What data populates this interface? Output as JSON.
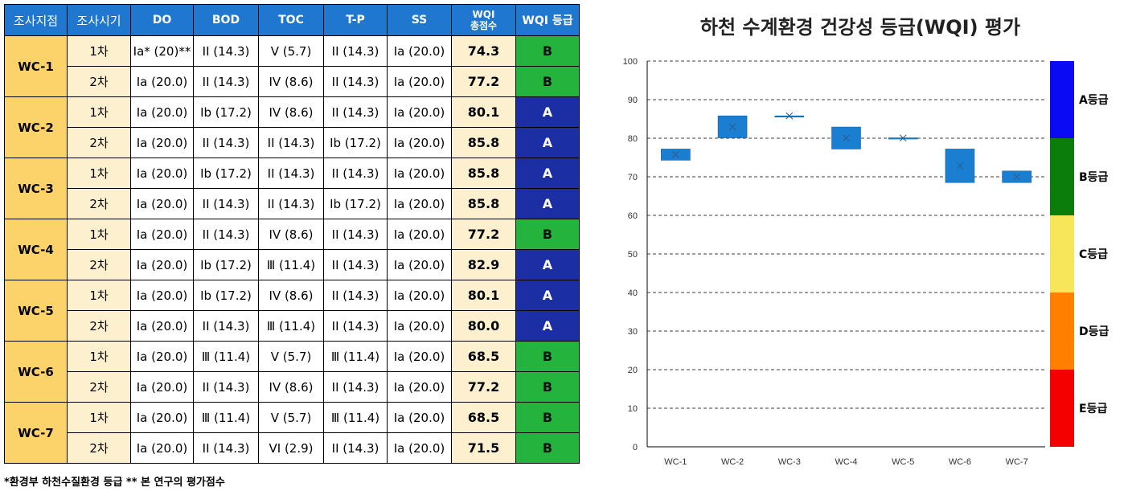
{
  "table": {
    "headers": [
      "조사지점",
      "조사시기",
      "DO",
      "BOD",
      "TOC",
      "T-P",
      "SS",
      "WQI\n총점수",
      "WQI 등급"
    ],
    "rows": [
      {
        "site": "WC-1",
        "time": "1차",
        "do": "Ia* (20)**",
        "bod": "II (14.3)",
        "toc": "V (5.7)",
        "tp": "II (14.3)",
        "ss": "Ia (20.0)",
        "score": "74.3",
        "grade": "B"
      },
      {
        "site": "WC-1",
        "time": "2차",
        "do": "Ia (20.0)",
        "bod": "II (14.3)",
        "toc": "IV (8.6)",
        "tp": "II (14.3)",
        "ss": "Ia (20.0)",
        "score": "77.2",
        "grade": "B"
      },
      {
        "site": "WC-2",
        "time": "1차",
        "do": "Ia (20.0)",
        "bod": "Ib (17.2)",
        "toc": "IV (8.6)",
        "tp": "II (14.3)",
        "ss": "Ia (20.0)",
        "score": "80.1",
        "grade": "A"
      },
      {
        "site": "WC-2",
        "time": "2차",
        "do": "Ia (20.0)",
        "bod": "II (14.3)",
        "toc": "II (14.3)",
        "tp": "Ib (17.2)",
        "ss": "Ia (20.0)",
        "score": "85.8",
        "grade": "A"
      },
      {
        "site": "WC-3",
        "time": "1차",
        "do": "Ia (20.0)",
        "bod": "Ib (17.2)",
        "toc": "II (14.3)",
        "tp": "II (14.3)",
        "ss": "Ia (20.0)",
        "score": "85.8",
        "grade": "A"
      },
      {
        "site": "WC-3",
        "time": "2차",
        "do": "Ia (20.0)",
        "bod": "II (14.3)",
        "toc": "II (14.3)",
        "tp": "Ib (17.2)",
        "ss": "Ia (20.0)",
        "score": "85.8",
        "grade": "A"
      },
      {
        "site": "WC-4",
        "time": "1차",
        "do": "Ia (20.0)",
        "bod": "II (14.3)",
        "toc": "IV (8.6)",
        "tp": "II (14.3)",
        "ss": "Ia (20.0)",
        "score": "77.2",
        "grade": "B"
      },
      {
        "site": "WC-4",
        "time": "2차",
        "do": "Ia (20.0)",
        "bod": "Ib (17.2)",
        "toc": "Ⅲ (11.4)",
        "tp": "II (14.3)",
        "ss": "Ia (20.0)",
        "score": "82.9",
        "grade": "A"
      },
      {
        "site": "WC-5",
        "time": "1차",
        "do": "Ia (20.0)",
        "bod": "Ib (17.2)",
        "toc": "IV (8.6)",
        "tp": "II (14.3)",
        "ss": "Ia (20.0)",
        "score": "80.1",
        "grade": "A"
      },
      {
        "site": "WC-5",
        "time": "2차",
        "do": "Ia (20.0)",
        "bod": "II (14.3)",
        "toc": "Ⅲ (11.4)",
        "tp": "II (14.3)",
        "ss": "Ia (20.0)",
        "score": "80.0",
        "grade": "A"
      },
      {
        "site": "WC-6",
        "time": "1차",
        "do": "Ia (20.0)",
        "bod": "Ⅲ (11.4)",
        "toc": "V (5.7)",
        "tp": "Ⅲ (11.4)",
        "ss": "Ia (20.0)",
        "score": "68.5",
        "grade": "B"
      },
      {
        "site": "WC-6",
        "time": "2차",
        "do": "Ia (20.0)",
        "bod": "II (14.3)",
        "toc": "IV (8.6)",
        "tp": "II (14.3)",
        "ss": "Ia (20.0)",
        "score": "77.2",
        "grade": "B"
      },
      {
        "site": "WC-7",
        "time": "1차",
        "do": "Ia (20.0)",
        "bod": "Ⅲ (11.4)",
        "toc": "V (5.7)",
        "tp": "Ⅲ (11.4)",
        "ss": "Ia (20.0)",
        "score": "68.5",
        "grade": "B"
      },
      {
        "site": "WC-7",
        "time": "2차",
        "do": "Ia (20.0)",
        "bod": "II (14.3)",
        "toc": "VI (2.9)",
        "tp": "II (14.3)",
        "ss": "Ia (20.0)",
        "score": "71.5",
        "grade": "B"
      }
    ]
  },
  "footnote": "*환경부 하천수질환경 등급 ** 본 연구의 평가점수",
  "colors": {
    "header": "#1f77d0",
    "site": "#fcd36a",
    "time": "#fdf0cf",
    "grade_A": "#1b2ea3",
    "grade_B": "#24b33c",
    "box": "#1a7fd0"
  },
  "chart_data": {
    "type": "box",
    "title": "하천 수계환경 건강성 등급(WQI) 평가",
    "categories": [
      "WC-1",
      "WC-2",
      "WC-3",
      "WC-4",
      "WC-5",
      "WC-6",
      "WC-7"
    ],
    "ranges": [
      [
        74.3,
        77.2
      ],
      [
        80.1,
        85.8
      ],
      [
        85.8,
        85.8
      ],
      [
        77.2,
        82.9
      ],
      [
        80.0,
        80.1
      ],
      [
        68.5,
        77.2
      ],
      [
        68.5,
        71.5
      ]
    ],
    "means": [
      75.75,
      82.95,
      85.8,
      80.05,
      80.05,
      72.85,
      70.0
    ],
    "ylim": [
      0,
      100
    ],
    "yticks": [
      0,
      10,
      20,
      30,
      40,
      50,
      60,
      70,
      80,
      90,
      100
    ],
    "grid": "dashed horizontal",
    "grade_bands": [
      {
        "label": "A등급",
        "from": 80,
        "to": 100,
        "color": "#0a0af5"
      },
      {
        "label": "B등급",
        "from": 60,
        "to": 80,
        "color": "#0b7d0b"
      },
      {
        "label": "C등급",
        "from": 40,
        "to": 60,
        "color": "#f7e55a"
      },
      {
        "label": "D등급",
        "from": 20,
        "to": 40,
        "color": "#ff8000"
      },
      {
        "label": "E등급",
        "from": 0,
        "to": 20,
        "color": "#f50000"
      }
    ]
  }
}
